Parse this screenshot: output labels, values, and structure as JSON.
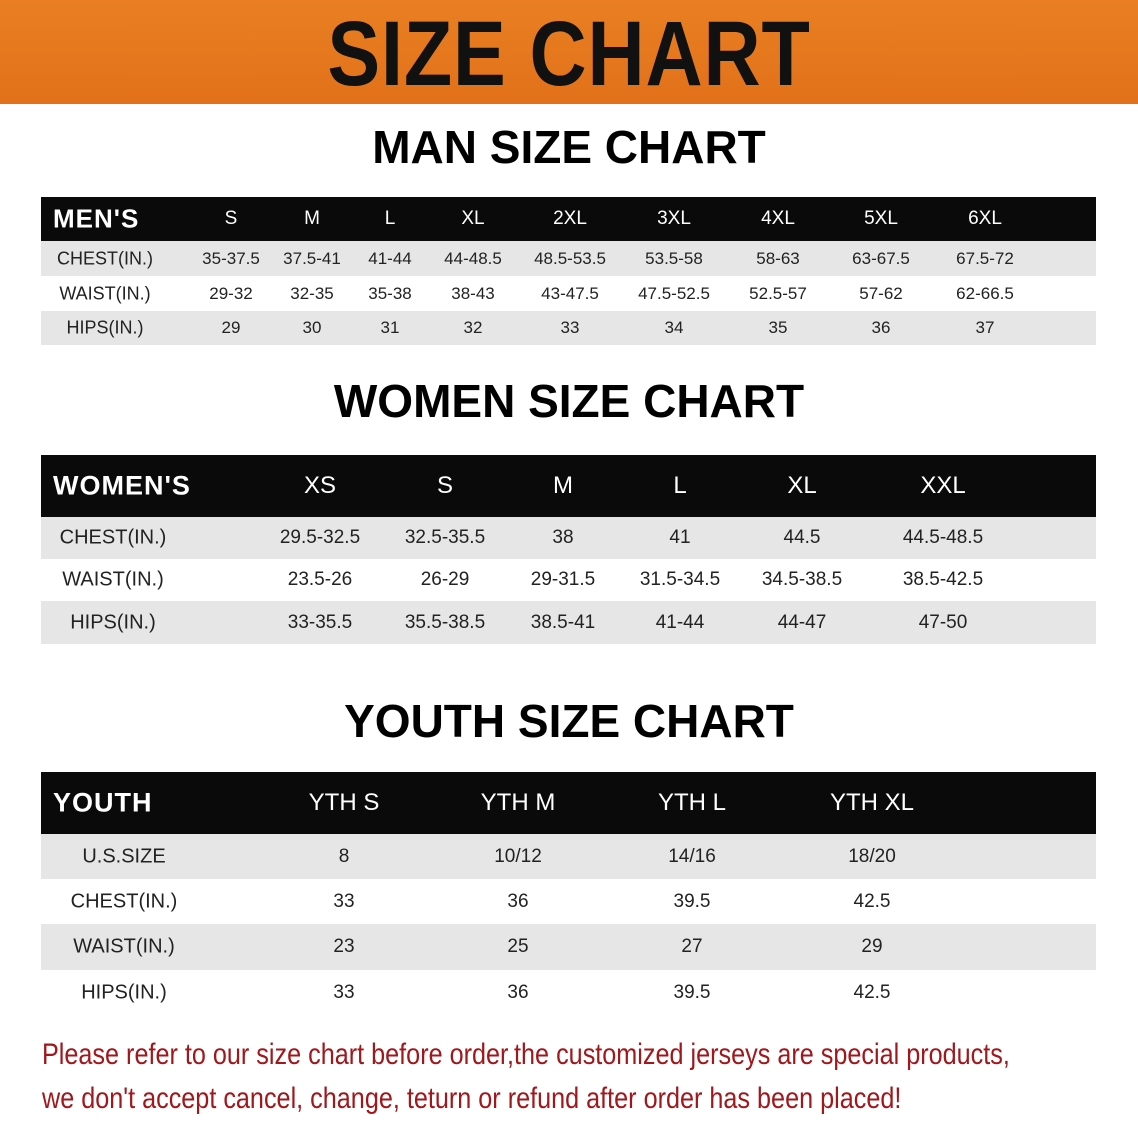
{
  "banner": {
    "title": "SIZE CHART",
    "color": "#e8781e"
  },
  "men": {
    "title": "MAN SIZE CHART",
    "header": "MEN'S",
    "sizes": [
      "S",
      "M",
      "L",
      "XL",
      "2XL",
      "3XL",
      "4XL",
      "5XL",
      "6XL"
    ],
    "rows": [
      {
        "label": "CHEST(IN.)",
        "values": [
          "35-37.5",
          "37.5-41",
          "41-44",
          "44-48.5",
          "48.5-53.5",
          "53.5-58",
          "58-63",
          "63-67.5",
          "67.5-72"
        ]
      },
      {
        "label": "WAIST(IN.)",
        "values": [
          "29-32",
          "32-35",
          "35-38",
          "38-43",
          "43-47.5",
          "47.5-52.5",
          "52.5-57",
          "57-62",
          "62-66.5"
        ]
      },
      {
        "label": "HIPS(IN.)",
        "values": [
          "29",
          "30",
          "31",
          "32",
          "33",
          "34",
          "35",
          "36",
          "37"
        ]
      }
    ]
  },
  "women": {
    "title": "WOMEN SIZE CHART",
    "header": "WOMEN'S",
    "sizes": [
      "XS",
      "S",
      "M",
      "L",
      "XL",
      "XXL"
    ],
    "rows": [
      {
        "label": "CHEST(IN.)",
        "values": [
          "29.5-32.5",
          "32.5-35.5",
          "38",
          "41",
          "44.5",
          "44.5-48.5"
        ]
      },
      {
        "label": "WAIST(IN.)",
        "values": [
          "23.5-26",
          "26-29",
          "29-31.5",
          "31.5-34.5",
          "34.5-38.5",
          "38.5-42.5"
        ]
      },
      {
        "label": "HIPS(IN.)",
        "values": [
          "33-35.5",
          "35.5-38.5",
          "38.5-41",
          "41-44",
          "44-47",
          "47-50"
        ]
      }
    ]
  },
  "youth": {
    "title": "YOUTH SIZE CHART",
    "header": "YOUTH",
    "sizes": [
      "YTH S",
      "YTH M",
      "YTH L",
      "YTH XL"
    ],
    "rows": [
      {
        "label": "U.S.SIZE",
        "values": [
          "8",
          "10/12",
          "14/16",
          "18/20"
        ]
      },
      {
        "label": "CHEST(IN.)",
        "values": [
          "33",
          "36",
          "39.5",
          "42.5"
        ]
      },
      {
        "label": "WAIST(IN.)",
        "values": [
          "23",
          "25",
          "27",
          "29"
        ]
      },
      {
        "label": "HIPS(IN.)",
        "values": [
          "33",
          "36",
          "39.5",
          "42.5"
        ]
      }
    ]
  },
  "notice": {
    "line1": "Please refer to our size chart before order,the customized jerseys are special products,",
    "line2": "we don't accept cancel, change, teturn or refund after order has been placed!",
    "color": "#a0171c"
  }
}
